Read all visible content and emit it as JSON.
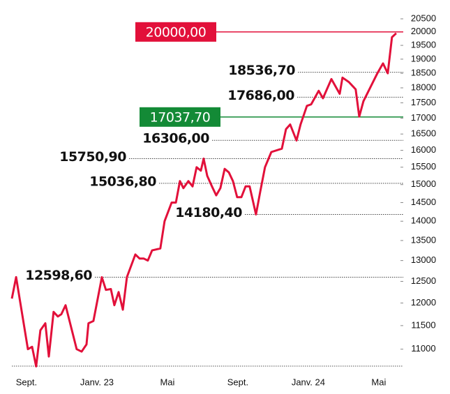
{
  "chart_data": {
    "type": "line",
    "log_scale": true,
    "x": [
      -0.83,
      -0.59,
      0.08,
      0.32,
      0.55,
      0.79,
      1.07,
      1.27,
      1.54,
      1.78,
      1.98,
      2.22,
      2.85,
      3.13,
      3.41,
      3.52,
      3.8,
      4.28,
      4.51,
      4.79,
      4.99,
      5.23,
      5.47,
      5.7,
      6.18,
      6.42,
      6.65,
      6.89,
      7.13,
      7.6,
      7.84,
      8.24,
      8.48,
      8.71,
      8.91,
      9.19,
      9.43,
      9.66,
      9.9,
      10.06,
      10.26,
      10.53,
      10.77,
      11.01,
      11.25,
      11.49,
      11.72,
      11.96,
      12.2,
      12.44,
      12.67,
      13.03,
      13.27,
      13.54,
      13.9,
      14.5,
      14.73,
      14.97,
      15.33,
      15.56,
      15.92,
      16.16,
      16.59,
      16.83,
      17.31,
      17.78,
      17.94,
      18.3,
      18.69,
      18.89,
      19.13,
      19.92,
      20.24,
      20.51,
      20.75,
      20.99
    ],
    "series": [
      {
        "color": "#e2103a",
        "values": [
          12100,
          12600,
          11000,
          11050,
          10650,
          11400,
          11550,
          10850,
          11800,
          11700,
          11750,
          11950,
          11000,
          10950,
          11100,
          11550,
          11600,
          12598.6,
          12300,
          12320,
          11950,
          12250,
          11850,
          12600,
          13150,
          13050,
          13050,
          13000,
          13250,
          13300,
          14000,
          14500,
          14500,
          15100,
          14900,
          15100,
          14950,
          15500,
          15400,
          15750.9,
          15250,
          14950,
          14700,
          14900,
          15450,
          15350,
          15100,
          14650,
          14650,
          14950,
          14950,
          14180.4,
          14800,
          15500,
          15950,
          16050,
          16650,
          16800,
          16300,
          16800,
          17400,
          17450,
          17900,
          17650,
          18300,
          17800,
          18350,
          18200,
          17950,
          17050,
          17550,
          18500,
          18850,
          18500,
          19800,
          19950
        ]
      }
    ],
    "xlim": [
      -0.83,
      21.39
    ],
    "xticks": [
      {
        "value": 0,
        "label": "Sept."
      },
      {
        "value": 4,
        "label": "Janv. 23"
      },
      {
        "value": 8,
        "label": "Mai"
      },
      {
        "value": 12,
        "label": "Sept."
      },
      {
        "value": 16,
        "label": "Janv. 24"
      },
      {
        "value": 20,
        "label": "Mai"
      }
    ],
    "ylim": [
      10655,
      20500
    ],
    "yticks": [
      11000,
      11500,
      12000,
      12500,
      13000,
      13500,
      14000,
      14500,
      15000,
      15500,
      16000,
      16500,
      17000,
      17500,
      18000,
      18500,
      19000,
      19500,
      20000,
      20500
    ],
    "annotations": [
      {
        "value": 20000,
        "label": "20000,00",
        "color": "#e2103a"
      },
      {
        "value": 18536.7,
        "label": "18536,70"
      },
      {
        "value": 17686,
        "label": "17686,00"
      },
      {
        "value": 17037.7,
        "label": "17037,70",
        "color": "#138a36"
      },
      {
        "value": 16306,
        "label": "16306,00"
      },
      {
        "value": 15750.9,
        "label": "15750,90"
      },
      {
        "value": 15036.8,
        "label": "15036,80"
      },
      {
        "value": 14180.4,
        "label": "14180,40"
      },
      {
        "value": 12598.6,
        "label": "12598,60"
      }
    ]
  }
}
